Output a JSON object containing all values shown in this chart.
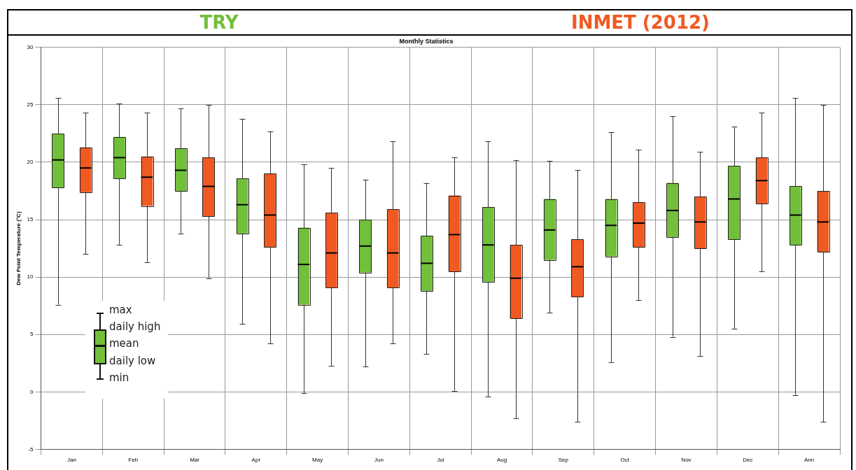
{
  "chart_data": {
    "type": "box",
    "title": "Monthly Statistics",
    "ylabel": "Dew Point Temperature (°C)",
    "categories": [
      "Jan",
      "Feb",
      "Mar",
      "Apr",
      "May",
      "Jun",
      "Jul",
      "Aug",
      "Sep",
      "Oct",
      "Nov",
      "Dec",
      "Ann"
    ],
    "ylim": [
      -5,
      30
    ],
    "yticks": [
      -5,
      0,
      5,
      10,
      15,
      20,
      25,
      30
    ],
    "grid": true,
    "legend": "top",
    "annotations": [
      "max",
      "daily high",
      "mean",
      "daily low",
      "min"
    ],
    "series": [
      {
        "name": "TRY",
        "color": "#72bf3b",
        "boxes": [
          {
            "low": 7.6,
            "q1": 17.8,
            "median": 20.2,
            "q3": 22.5,
            "high": 25.6
          },
          {
            "low": 12.8,
            "q1": 18.6,
            "median": 20.4,
            "q3": 22.2,
            "high": 25.1
          },
          {
            "low": 13.8,
            "q1": 17.5,
            "median": 19.3,
            "q3": 21.2,
            "high": 24.7
          },
          {
            "low": 5.9,
            "q1": 13.8,
            "median": 16.3,
            "q3": 18.6,
            "high": 23.8
          },
          {
            "low": -0.1,
            "q1": 7.6,
            "median": 11.1,
            "q3": 14.3,
            "high": 19.8
          },
          {
            "low": 2.2,
            "q1": 10.4,
            "median": 12.7,
            "q3": 15.0,
            "high": 18.5
          },
          {
            "low": 3.3,
            "q1": 8.8,
            "median": 11.2,
            "q3": 13.6,
            "high": 18.2
          },
          {
            "low": -0.4,
            "q1": 9.6,
            "median": 12.8,
            "q3": 16.1,
            "high": 21.8
          },
          {
            "low": 6.9,
            "q1": 11.5,
            "median": 14.1,
            "q3": 16.8,
            "high": 20.1
          },
          {
            "low": 2.6,
            "q1": 11.8,
            "median": 14.5,
            "q3": 16.8,
            "high": 22.6
          },
          {
            "low": 4.8,
            "q1": 13.5,
            "median": 15.8,
            "q3": 18.2,
            "high": 24.0
          },
          {
            "low": 5.5,
            "q1": 13.3,
            "median": 16.8,
            "q3": 19.7,
            "high": 23.1
          },
          {
            "low": -0.3,
            "q1": 12.8,
            "median": 15.4,
            "q3": 17.9,
            "high": 25.6
          }
        ]
      },
      {
        "name": "INMET (2012)",
        "color": "#f05a22",
        "boxes": [
          {
            "low": 12.0,
            "q1": 17.4,
            "median": 19.5,
            "q3": 21.3,
            "high": 24.3
          },
          {
            "low": 11.3,
            "q1": 16.2,
            "median": 18.7,
            "q3": 20.5,
            "high": 24.3
          },
          {
            "low": 9.9,
            "q1": 15.3,
            "median": 17.9,
            "q3": 20.4,
            "high": 25.0
          },
          {
            "low": 4.2,
            "q1": 12.6,
            "median": 15.4,
            "q3": 19.0,
            "high": 22.7
          },
          {
            "low": 2.3,
            "q1": 9.1,
            "median": 12.1,
            "q3": 15.6,
            "high": 19.5
          },
          {
            "low": 4.2,
            "q1": 9.1,
            "median": 12.1,
            "q3": 15.9,
            "high": 21.8
          },
          {
            "low": 0.1,
            "q1": 10.5,
            "median": 13.7,
            "q3": 17.1,
            "high": 20.4
          },
          {
            "low": -2.3,
            "q1": 6.4,
            "median": 9.9,
            "q3": 12.8,
            "high": 20.2
          },
          {
            "low": -2.6,
            "q1": 8.3,
            "median": 10.9,
            "q3": 13.3,
            "high": 19.3
          },
          {
            "low": 8.0,
            "q1": 12.6,
            "median": 14.7,
            "q3": 16.5,
            "high": 21.1
          },
          {
            "low": 3.1,
            "q1": 12.5,
            "median": 14.8,
            "q3": 17.0,
            "high": 20.9
          },
          {
            "low": 10.5,
            "q1": 16.4,
            "median": 18.4,
            "q3": 20.4,
            "high": 24.3
          },
          {
            "low": -2.6,
            "q1": 12.2,
            "median": 14.8,
            "q3": 17.5,
            "high": 25.0
          }
        ]
      }
    ]
  }
}
